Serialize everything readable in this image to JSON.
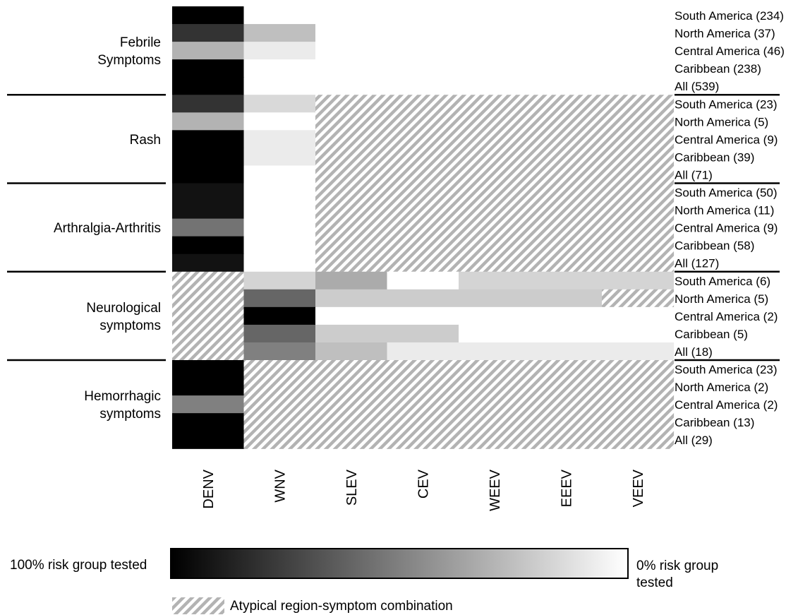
{
  "chart_data": {
    "type": "heatmap",
    "columns": [
      "DENV",
      "WNV",
      "SLEV",
      "CEV",
      "WEEV",
      "EEEV",
      "VEEV"
    ],
    "groups": [
      {
        "label": "Febrile\nSymptoms",
        "rows": [
          {
            "label": "South America (234)",
            "values": [
              1.0,
              0,
              0,
              0,
              0,
              0,
              0
            ],
            "hatched": []
          },
          {
            "label": "North America (37)",
            "values": [
              0.8,
              0.25,
              0,
              0,
              0,
              0,
              0
            ],
            "hatched": []
          },
          {
            "label": "Central America (46)",
            "values": [
              0.3,
              0.08,
              0,
              0,
              0,
              0,
              0
            ],
            "hatched": []
          },
          {
            "label": "Caribbean (238)",
            "values": [
              1.0,
              0,
              0,
              0,
              0,
              0,
              0
            ],
            "hatched": []
          },
          {
            "label": "All (539)",
            "values": [
              1.0,
              0,
              0,
              0,
              0,
              0,
              0
            ],
            "hatched": []
          }
        ]
      },
      {
        "label": "Rash",
        "rows": [
          {
            "label": "South America (23)",
            "values": [
              0.8,
              0.15,
              null,
              null,
              null,
              null,
              null
            ],
            "hatched": [
              2,
              3,
              4,
              5,
              6
            ]
          },
          {
            "label": "North America (5)",
            "values": [
              0.3,
              0,
              null,
              null,
              null,
              null,
              null
            ],
            "hatched": [
              2,
              3,
              4,
              5,
              6
            ]
          },
          {
            "label": "Central America (9)",
            "values": [
              1.0,
              0.08,
              null,
              null,
              null,
              null,
              null
            ],
            "hatched": [
              2,
              3,
              4,
              5,
              6
            ]
          },
          {
            "label": "Caribbean (39)",
            "values": [
              1.0,
              0.08,
              null,
              null,
              null,
              null,
              null
            ],
            "hatched": [
              2,
              3,
              4,
              5,
              6
            ]
          },
          {
            "label": "All (71)",
            "values": [
              1.0,
              0,
              null,
              null,
              null,
              null,
              null
            ],
            "hatched": [
              2,
              3,
              4,
              5,
              6
            ]
          }
        ]
      },
      {
        "label": "Arthralgia-Arthritis",
        "rows": [
          {
            "label": "South America (50)",
            "values": [
              0.93,
              0,
              null,
              null,
              null,
              null,
              null
            ],
            "hatched": [
              2,
              3,
              4,
              5,
              6
            ]
          },
          {
            "label": "North America (11)",
            "values": [
              0.93,
              0,
              null,
              null,
              null,
              null,
              null
            ],
            "hatched": [
              2,
              3,
              4,
              5,
              6
            ]
          },
          {
            "label": "Central America (9)",
            "values": [
              0.55,
              0,
              null,
              null,
              null,
              null,
              null
            ],
            "hatched": [
              2,
              3,
              4,
              5,
              6
            ]
          },
          {
            "label": "Caribbean (58)",
            "values": [
              1.0,
              0,
              null,
              null,
              null,
              null,
              null
            ],
            "hatched": [
              2,
              3,
              4,
              5,
              6
            ]
          },
          {
            "label": "All (127)",
            "values": [
              0.93,
              0,
              null,
              null,
              null,
              null,
              null
            ],
            "hatched": [
              2,
              3,
              4,
              5,
              6
            ]
          }
        ]
      },
      {
        "label": "Neurological\nsymptoms",
        "rows": [
          {
            "label": "South America (6)",
            "values": [
              null,
              0.17,
              0.33,
              0,
              0.17,
              0.17,
              0.17
            ],
            "hatched": [
              0
            ]
          },
          {
            "label": "North America (5)",
            "values": [
              null,
              0.6,
              0.2,
              0.2,
              0.2,
              0.2,
              null
            ],
            "hatched": [
              0,
              6
            ]
          },
          {
            "label": "Central America (2)",
            "values": [
              null,
              1.0,
              0,
              0,
              0,
              0,
              0
            ],
            "hatched": [
              0
            ]
          },
          {
            "label": "Caribbean (5)",
            "values": [
              null,
              0.6,
              0.2,
              0.2,
              0,
              0,
              0
            ],
            "hatched": [
              0
            ]
          },
          {
            "label": "All (18)",
            "values": [
              null,
              0.5,
              0.25,
              0.08,
              0.08,
              0.08,
              0.08
            ],
            "hatched": [
              0
            ]
          }
        ]
      },
      {
        "label": "Hemorrhagic\nsymptoms",
        "rows": [
          {
            "label": "South America (23)",
            "values": [
              1.0,
              null,
              null,
              null,
              null,
              null,
              null
            ],
            "hatched": [
              1,
              2,
              3,
              4,
              5,
              6
            ]
          },
          {
            "label": "North America (2)",
            "values": [
              1.0,
              null,
              null,
              null,
              null,
              null,
              null
            ],
            "hatched": [
              1,
              2,
              3,
              4,
              5,
              6
            ]
          },
          {
            "label": "Central America (2)",
            "values": [
              0.5,
              null,
              null,
              null,
              null,
              null,
              null
            ],
            "hatched": [
              1,
              2,
              3,
              4,
              5,
              6
            ]
          },
          {
            "label": "Caribbean (13)",
            "values": [
              1.0,
              null,
              null,
              null,
              null,
              null,
              null
            ],
            "hatched": [
              1,
              2,
              3,
              4,
              5,
              6
            ]
          },
          {
            "label": "All (29)",
            "values": [
              1.0,
              null,
              null,
              null,
              null,
              null,
              null
            ],
            "hatched": [
              1,
              2,
              3,
              4,
              5,
              6
            ]
          }
        ]
      }
    ],
    "value_meaning": "fraction of risk group tested (1 = black, 0 = white)",
    "legend": {
      "min_label": "100% risk group tested",
      "max_label": "0% risk group\ntested",
      "hatch_label": "Atypical region-symptom combination"
    },
    "colors": {
      "high": "#000000",
      "low": "#ffffff",
      "hatch": "#b3b3b3"
    }
  }
}
